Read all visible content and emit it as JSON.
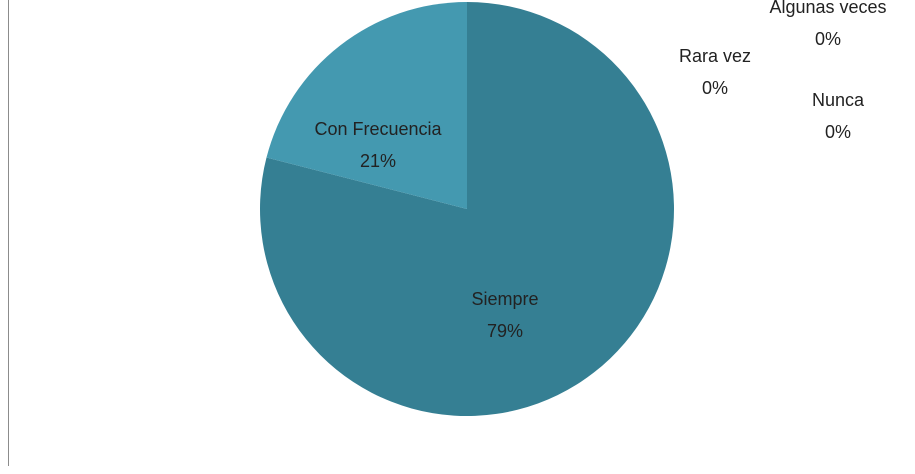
{
  "chart_data": {
    "type": "pie",
    "categories": [
      "Siempre",
      "Con Frecuencia",
      "Algunas veces",
      "Rara vez",
      "Nunca"
    ],
    "values": [
      79,
      21,
      0,
      0,
      0
    ],
    "value_labels": [
      "79%",
      "21%",
      "0%",
      "0%",
      "0%"
    ],
    "colors": [
      "#357f93",
      "#4499b0",
      "#5aaec4",
      "#6fc0d4",
      "#86cfe0"
    ]
  }
}
